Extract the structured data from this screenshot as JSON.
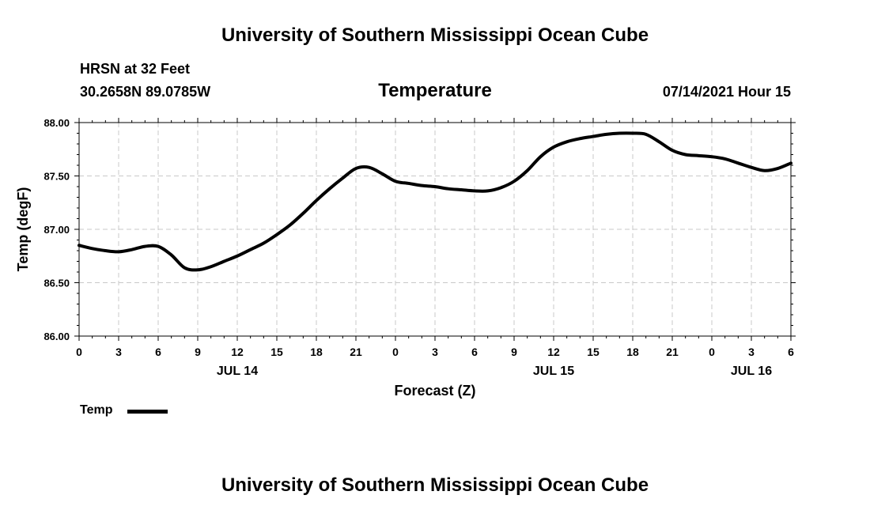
{
  "header": {
    "title": "University of Southern Mississippi Ocean Cube",
    "station": "HRSN at 32 Feet",
    "coords": "30.2658N  89.0785W",
    "variable": "Temperature",
    "datetime": "07/14/2021 Hour 15"
  },
  "footer": {
    "title": "University of Southern Mississippi Ocean Cube"
  },
  "legend": {
    "label": "Temp"
  },
  "chart_data": {
    "type": "line",
    "title": "Temperature",
    "xlabel": "Forecast (Z)",
    "ylabel": "Temp (degF)",
    "ylim": [
      86.0,
      88.0
    ],
    "xlim": [
      0,
      54
    ],
    "yticks": [
      "86.00",
      "86.50",
      "87.00",
      "87.50",
      "88.00"
    ],
    "xtick_labels": [
      "0",
      "3",
      "6",
      "9",
      "12",
      "15",
      "18",
      "21",
      "0",
      "3",
      "6",
      "9",
      "12",
      "15",
      "18",
      "21",
      "0",
      "3",
      "6"
    ],
    "date_labels": [
      {
        "label": "JUL 14",
        "hour": 12
      },
      {
        "label": "JUL 15",
        "hour": 36
      },
      {
        "label": "JUL 16",
        "hour": 51
      }
    ],
    "grid": true,
    "series": [
      {
        "name": "Temp",
        "color": "#000000",
        "x": [
          0,
          1,
          2,
          3,
          4,
          5,
          6,
          7,
          8,
          9,
          10,
          11,
          12,
          13,
          14,
          15,
          16,
          17,
          18,
          19,
          20,
          21,
          22,
          23,
          24,
          25,
          26,
          27,
          28,
          29,
          30,
          31,
          32,
          33,
          34,
          35,
          36,
          37,
          38,
          39,
          40,
          41,
          42,
          43,
          44,
          45,
          46,
          47,
          48,
          49,
          50,
          51,
          52,
          53,
          54
        ],
        "values": [
          86.85,
          86.82,
          86.8,
          86.79,
          86.81,
          86.84,
          86.84,
          86.76,
          86.64,
          86.62,
          86.65,
          86.7,
          86.75,
          86.81,
          86.87,
          86.95,
          87.04,
          87.15,
          87.27,
          87.38,
          87.48,
          87.57,
          87.58,
          87.52,
          87.45,
          87.43,
          87.41,
          87.4,
          87.38,
          87.37,
          87.36,
          87.36,
          87.39,
          87.45,
          87.55,
          87.68,
          87.77,
          87.82,
          87.85,
          87.87,
          87.89,
          87.9,
          87.9,
          87.89,
          87.82,
          87.74,
          87.7,
          87.69,
          87.68,
          87.66,
          87.62,
          87.58,
          87.55,
          87.57,
          87.62
        ]
      }
    ]
  }
}
